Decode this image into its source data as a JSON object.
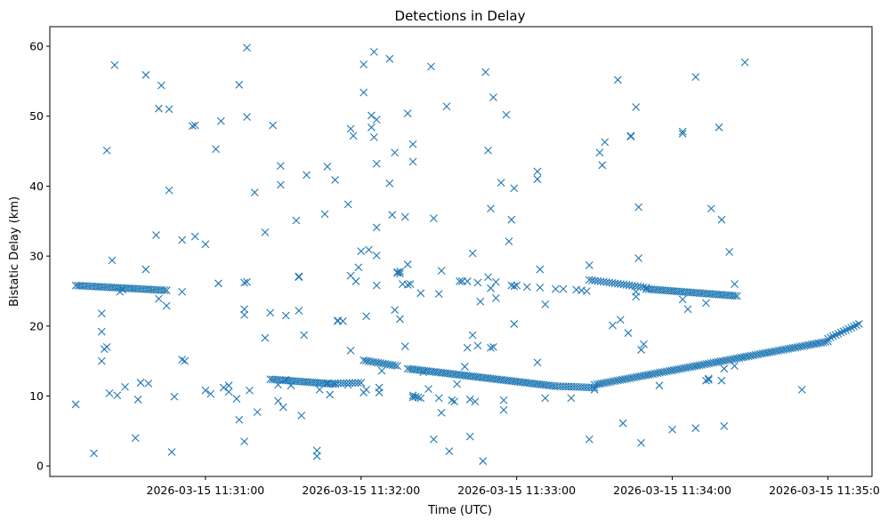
{
  "chart_data": {
    "type": "scatter",
    "title": "Detections in Delay",
    "xlabel": "Time (UTC)",
    "ylabel": "Bistatic Delay (km)",
    "marker": "x",
    "color": "#1f77b4",
    "x_axis": {
      "unit": "seconds after 2026-03-15 11:30:00",
      "range": [
        0,
        317
      ],
      "ticks": [
        {
          "value": 60,
          "label": "2026-03-15 11:31:00"
        },
        {
          "value": 120,
          "label": "2026-03-15 11:32:00"
        },
        {
          "value": 180,
          "label": "2026-03-15 11:33:00"
        },
        {
          "value": 240,
          "label": "2026-03-15 11:34:00"
        },
        {
          "value": 300,
          "label": "2026-03-15 11:35:00"
        }
      ]
    },
    "y_axis": {
      "range": [
        -1.5,
        62.8
      ],
      "ticks": [
        0,
        10,
        20,
        30,
        40,
        50,
        60
      ]
    },
    "grid": false,
    "legend": "none",
    "tracks": [
      {
        "t_start": 10,
        "t_end": 45,
        "y_start": 25.8,
        "y_end": 25.1,
        "step": 0.9
      },
      {
        "t_start": 85,
        "t_end": 110,
        "y_start": 12.4,
        "y_end": 11.7,
        "step": 0.9
      },
      {
        "t_start": 110,
        "t_end": 120,
        "y_start": 11.8,
        "y_end": 11.9,
        "step": 1.1
      },
      {
        "t_start": 121,
        "t_end": 134,
        "y_start": 15.1,
        "y_end": 14.3,
        "step": 0.9
      },
      {
        "t_start": 138,
        "t_end": 195,
        "y_start": 13.9,
        "y_end": 11.4,
        "step": 0.9
      },
      {
        "t_start": 196,
        "t_end": 210,
        "y_start": 11.4,
        "y_end": 11.2,
        "step": 1.0
      },
      {
        "t_start": 210,
        "t_end": 300,
        "y_start": 11.6,
        "y_end": 17.8,
        "step": 0.9
      },
      {
        "t_start": 300,
        "t_end": 312,
        "y_start": 18.2,
        "y_end": 20.3,
        "step": 1.0
      },
      {
        "t_start": 208,
        "t_end": 230,
        "y_start": 26.6,
        "y_end": 25.5,
        "step": 1.1
      },
      {
        "t_start": 230,
        "t_end": 265,
        "y_start": 25.3,
        "y_end": 24.3,
        "step": 0.9
      }
    ],
    "scattered_points": [
      [
        10,
        8.8
      ],
      [
        17,
        1.8
      ],
      [
        22,
        45.1
      ],
      [
        24,
        29.4
      ],
      [
        23,
        10.4
      ],
      [
        20,
        21.8
      ],
      [
        20,
        19.2
      ],
      [
        20,
        15.0
      ],
      [
        21,
        16.7
      ],
      [
        22,
        17.0
      ],
      [
        25,
        57.3
      ],
      [
        26,
        10.1
      ],
      [
        29,
        11.3
      ],
      [
        28,
        25.2
      ],
      [
        27,
        24.9
      ],
      [
        33,
        4.0
      ],
      [
        34,
        9.5
      ],
      [
        35,
        11.9
      ],
      [
        37,
        55.9
      ],
      [
        37,
        28.1
      ],
      [
        38,
        11.8
      ],
      [
        41,
        33.0
      ],
      [
        42,
        51.1
      ],
      [
        43,
        54.4
      ],
      [
        42,
        23.9
      ],
      [
        45,
        22.9
      ],
      [
        46,
        51.0
      ],
      [
        46,
        39.4
      ],
      [
        47,
        2.0
      ],
      [
        48,
        9.9
      ],
      [
        51,
        32.3
      ],
      [
        51,
        24.9
      ],
      [
        51,
        15.2
      ],
      [
        52,
        15.0
      ],
      [
        55,
        48.6
      ],
      [
        56,
        48.7
      ],
      [
        56,
        32.8
      ],
      [
        60,
        31.7
      ],
      [
        60,
        10.8
      ],
      [
        62,
        10.3
      ],
      [
        64,
        45.3
      ],
      [
        65,
        26.1
      ],
      [
        66,
        49.3
      ],
      [
        67,
        11.2
      ],
      [
        69,
        10.6
      ],
      [
        69,
        11.5
      ],
      [
        72,
        9.6
      ],
      [
        73,
        54.5
      ],
      [
        73,
        6.6
      ],
      [
        75,
        21.6
      ],
      [
        75,
        26.2
      ],
      [
        75,
        22.4
      ],
      [
        75,
        3.5
      ],
      [
        76,
        26.3
      ],
      [
        76,
        59.8
      ],
      [
        76,
        49.9
      ],
      [
        77,
        10.8
      ],
      [
        79,
        39.1
      ],
      [
        80,
        7.7
      ],
      [
        83,
        33.4
      ],
      [
        83,
        18.3
      ],
      [
        85,
        21.9
      ],
      [
        86,
        48.7
      ],
      [
        88,
        11.6
      ],
      [
        88,
        9.3
      ],
      [
        89,
        42.9
      ],
      [
        89,
        40.2
      ],
      [
        90,
        8.4
      ],
      [
        91,
        21.5
      ],
      [
        91,
        12.3
      ],
      [
        93,
        11.5
      ],
      [
        95,
        35.1
      ],
      [
        96,
        27.0
      ],
      [
        96,
        27.1
      ],
      [
        96,
        22.2
      ],
      [
        97,
        7.2
      ],
      [
        98,
        18.7
      ],
      [
        99,
        41.6
      ],
      [
        103,
        2.2
      ],
      [
        103,
        1.4
      ],
      [
        104,
        10.9
      ],
      [
        106,
        36.0
      ],
      [
        107,
        42.8
      ],
      [
        107,
        11.8
      ],
      [
        108,
        10.2
      ],
      [
        110,
        40.9
      ],
      [
        111,
        20.8
      ],
      [
        111,
        20.7
      ],
      [
        113,
        20.7
      ],
      [
        115,
        11.6
      ],
      [
        115,
        37.4
      ],
      [
        116,
        27.2
      ],
      [
        116,
        16.5
      ],
      [
        116,
        48.2
      ],
      [
        117,
        47.2
      ],
      [
        118,
        26.4
      ],
      [
        119,
        28.4
      ],
      [
        120,
        30.7
      ],
      [
        121,
        53.4
      ],
      [
        121,
        57.4
      ],
      [
        121,
        10.5
      ],
      [
        122,
        21.4
      ],
      [
        122,
        10.9
      ],
      [
        123,
        30.9
      ],
      [
        124,
        48.4
      ],
      [
        124,
        50.1
      ],
      [
        125,
        59.2
      ],
      [
        125,
        47.0
      ],
      [
        126,
        34.1
      ],
      [
        126,
        43.2
      ],
      [
        126,
        30.1
      ],
      [
        126,
        25.8
      ],
      [
        126,
        49.5
      ],
      [
        127,
        11.2
      ],
      [
        127,
        10.5
      ],
      [
        128,
        13.6
      ],
      [
        131,
        40.4
      ],
      [
        131,
        58.2
      ],
      [
        132,
        35.9
      ],
      [
        133,
        22.3
      ],
      [
        133,
        44.8
      ],
      [
        134,
        27.7
      ],
      [
        134,
        27.6
      ],
      [
        135,
        27.5
      ],
      [
        135,
        21.0
      ],
      [
        135,
        27.8
      ],
      [
        136,
        26.0
      ],
      [
        137,
        17.1
      ],
      [
        137,
        35.6
      ],
      [
        138,
        50.4
      ],
      [
        138,
        25.9
      ],
      [
        138,
        28.8
      ],
      [
        139,
        26.0
      ],
      [
        140,
        43.5
      ],
      [
        140,
        46.0
      ],
      [
        140,
        10.1
      ],
      [
        140,
        9.8
      ],
      [
        141,
        9.9
      ],
      [
        142,
        9.8
      ],
      [
        143,
        24.7
      ],
      [
        143,
        9.7
      ],
      [
        144,
        13.4
      ],
      [
        146,
        11.0
      ],
      [
        147,
        57.1
      ],
      [
        148,
        35.4
      ],
      [
        148,
        3.8
      ],
      [
        150,
        24.6
      ],
      [
        150,
        9.7
      ],
      [
        151,
        27.9
      ],
      [
        151,
        7.6
      ],
      [
        153,
        51.4
      ],
      [
        154,
        2.1
      ],
      [
        155,
        9.4
      ],
      [
        156,
        9.2
      ],
      [
        157,
        11.7
      ],
      [
        158,
        26.4
      ],
      [
        159,
        26.4
      ],
      [
        161,
        26.4
      ],
      [
        160,
        14.2
      ],
      [
        161,
        16.9
      ],
      [
        162,
        4.2
      ],
      [
        162,
        9.5
      ],
      [
        163,
        30.4
      ],
      [
        163,
        18.7
      ],
      [
        164,
        9.2
      ],
      [
        165,
        17.2
      ],
      [
        165,
        26.2
      ],
      [
        166,
        23.5
      ],
      [
        167,
        0.7
      ],
      [
        168,
        56.3
      ],
      [
        169,
        45.1
      ],
      [
        169,
        27.0
      ],
      [
        170,
        36.8
      ],
      [
        170,
        25.4
      ],
      [
        170,
        16.9
      ],
      [
        171,
        17.0
      ],
      [
        171,
        52.7
      ],
      [
        172,
        26.3
      ],
      [
        172,
        24.0
      ],
      [
        174,
        40.5
      ],
      [
        175,
        8.0
      ],
      [
        175,
        9.4
      ],
      [
        176,
        50.2
      ],
      [
        177,
        32.1
      ],
      [
        178,
        35.2
      ],
      [
        178,
        25.8
      ],
      [
        179,
        39.7
      ],
      [
        179,
        20.3
      ],
      [
        179,
        25.7
      ],
      [
        180,
        25.8
      ],
      [
        184,
        25.6
      ],
      [
        188,
        14.8
      ],
      [
        188,
        41.0
      ],
      [
        188,
        42.1
      ],
      [
        189,
        28.1
      ],
      [
        189,
        25.5
      ],
      [
        191,
        23.1
      ],
      [
        191,
        9.7
      ],
      [
        195,
        25.3
      ],
      [
        198,
        25.3
      ],
      [
        201,
        9.7
      ],
      [
        203,
        25.2
      ],
      [
        205,
        25.1
      ],
      [
        207,
        25.0
      ],
      [
        208,
        28.7
      ],
      [
        208,
        3.8
      ],
      [
        210,
        10.9
      ],
      [
        212,
        44.8
      ],
      [
        213,
        43.0
      ],
      [
        214,
        46.3
      ],
      [
        217,
        20.1
      ],
      [
        219,
        55.2
      ],
      [
        220,
        20.9
      ],
      [
        221,
        6.1
      ],
      [
        223,
        19.0
      ],
      [
        224,
        47.2
      ],
      [
        224,
        47.1
      ],
      [
        226,
        51.3
      ],
      [
        226,
        24.2
      ],
      [
        226,
        24.9
      ],
      [
        227,
        37.0
      ],
      [
        227,
        29.7
      ],
      [
        228,
        3.3
      ],
      [
        228,
        16.6
      ],
      [
        229,
        17.4
      ],
      [
        235,
        11.5
      ],
      [
        240,
        5.2
      ],
      [
        244,
        47.8
      ],
      [
        244,
        47.5
      ],
      [
        244,
        23.8
      ],
      [
        246,
        22.4
      ],
      [
        249,
        5.4
      ],
      [
        249,
        55.6
      ],
      [
        253,
        12.2
      ],
      [
        253,
        23.3
      ],
      [
        254,
        12.5
      ],
      [
        254,
        12.3
      ],
      [
        255,
        36.8
      ],
      [
        258,
        48.4
      ],
      [
        259,
        12.2
      ],
      [
        259,
        35.2
      ],
      [
        260,
        5.7
      ],
      [
        260,
        13.9
      ],
      [
        262,
        30.6
      ],
      [
        264,
        14.3
      ],
      [
        264,
        26.0
      ],
      [
        268,
        57.7
      ],
      [
        290,
        10.9
      ]
    ]
  }
}
